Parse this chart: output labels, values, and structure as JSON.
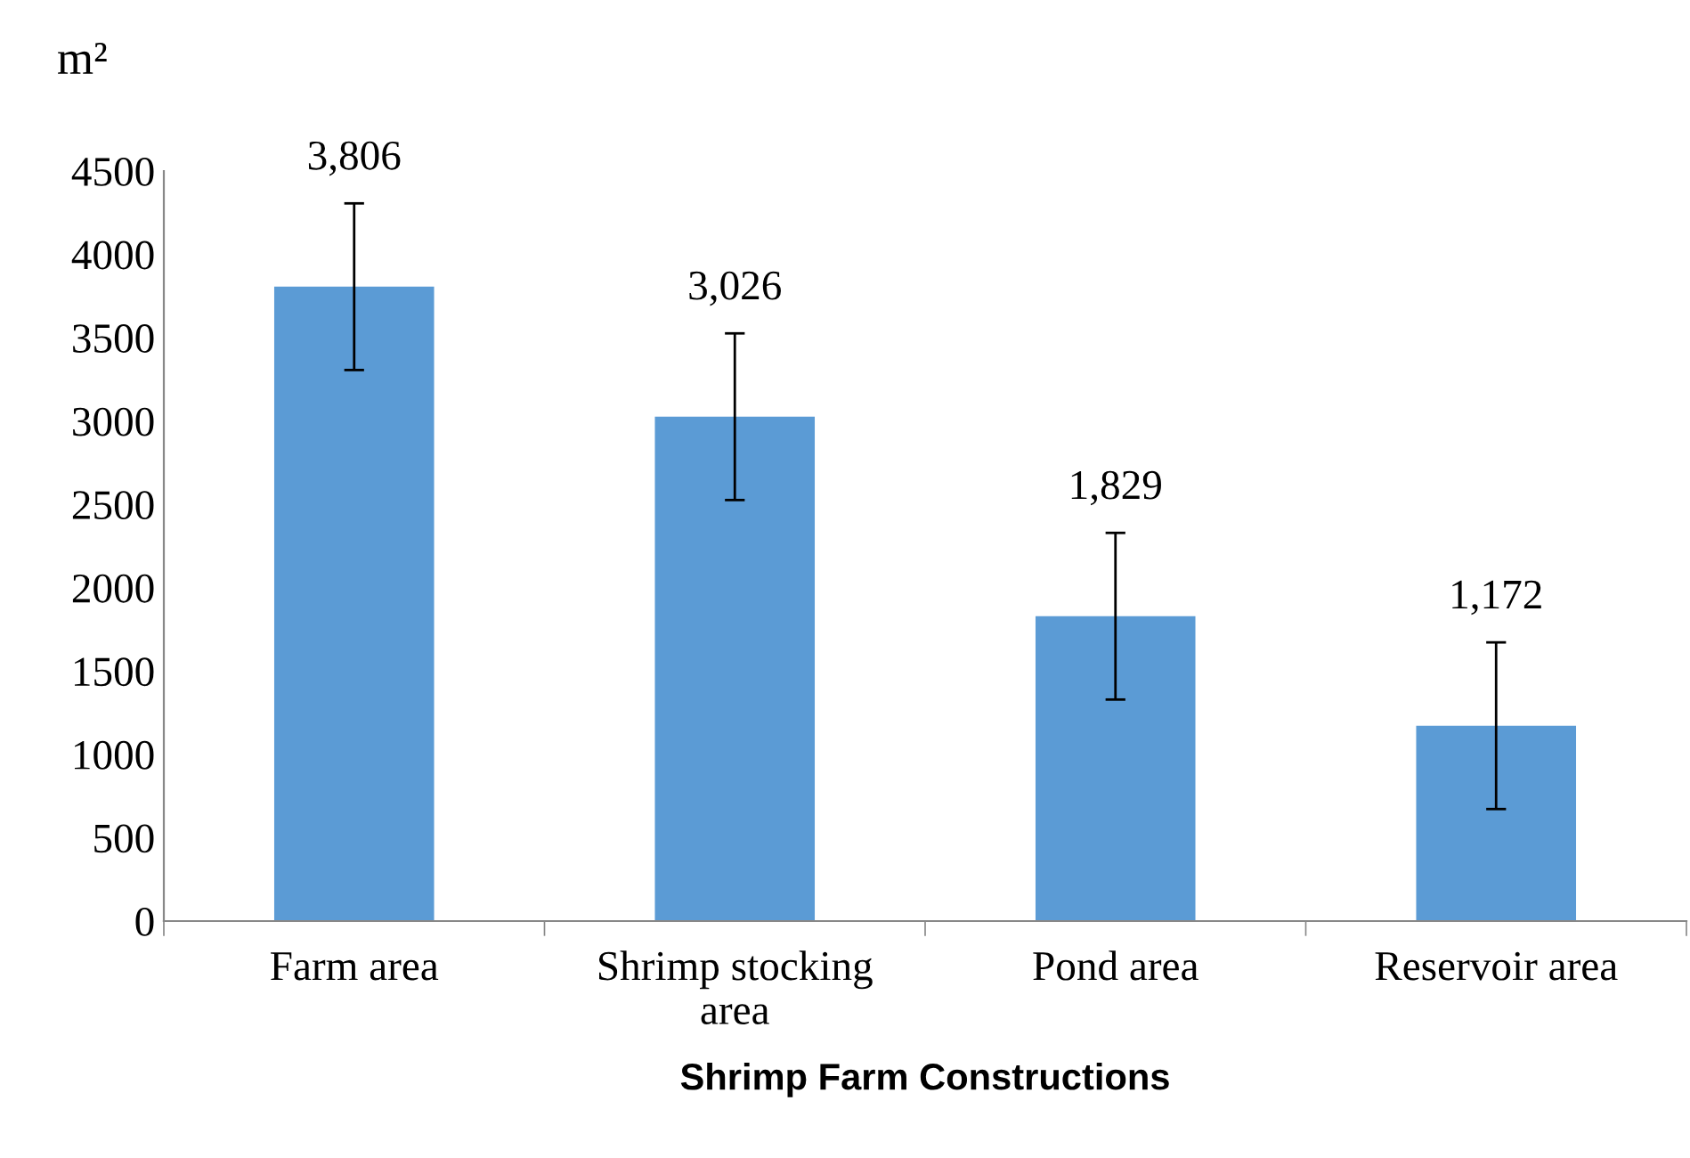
{
  "chart_data": {
    "type": "bar",
    "xlabel": "Shrimp Farm Constructions",
    "ylabel": "m²",
    "categories": [
      "Farm area",
      "Shrimp stocking\narea",
      "Pond area",
      "Reservoir area"
    ],
    "values": [
      3806,
      3026,
      1829,
      1172
    ],
    "errors": [
      500,
      500,
      500,
      500
    ],
    "value_labels": [
      "3,806",
      "3,026",
      "1,829",
      "1,172"
    ],
    "color": "#5b9bd5",
    "ylim": [
      0,
      4500
    ],
    "yticks": [
      0,
      500,
      1000,
      1500,
      2000,
      2500,
      3000,
      3500,
      4000,
      4500
    ],
    "grid": false,
    "legend": false
  }
}
